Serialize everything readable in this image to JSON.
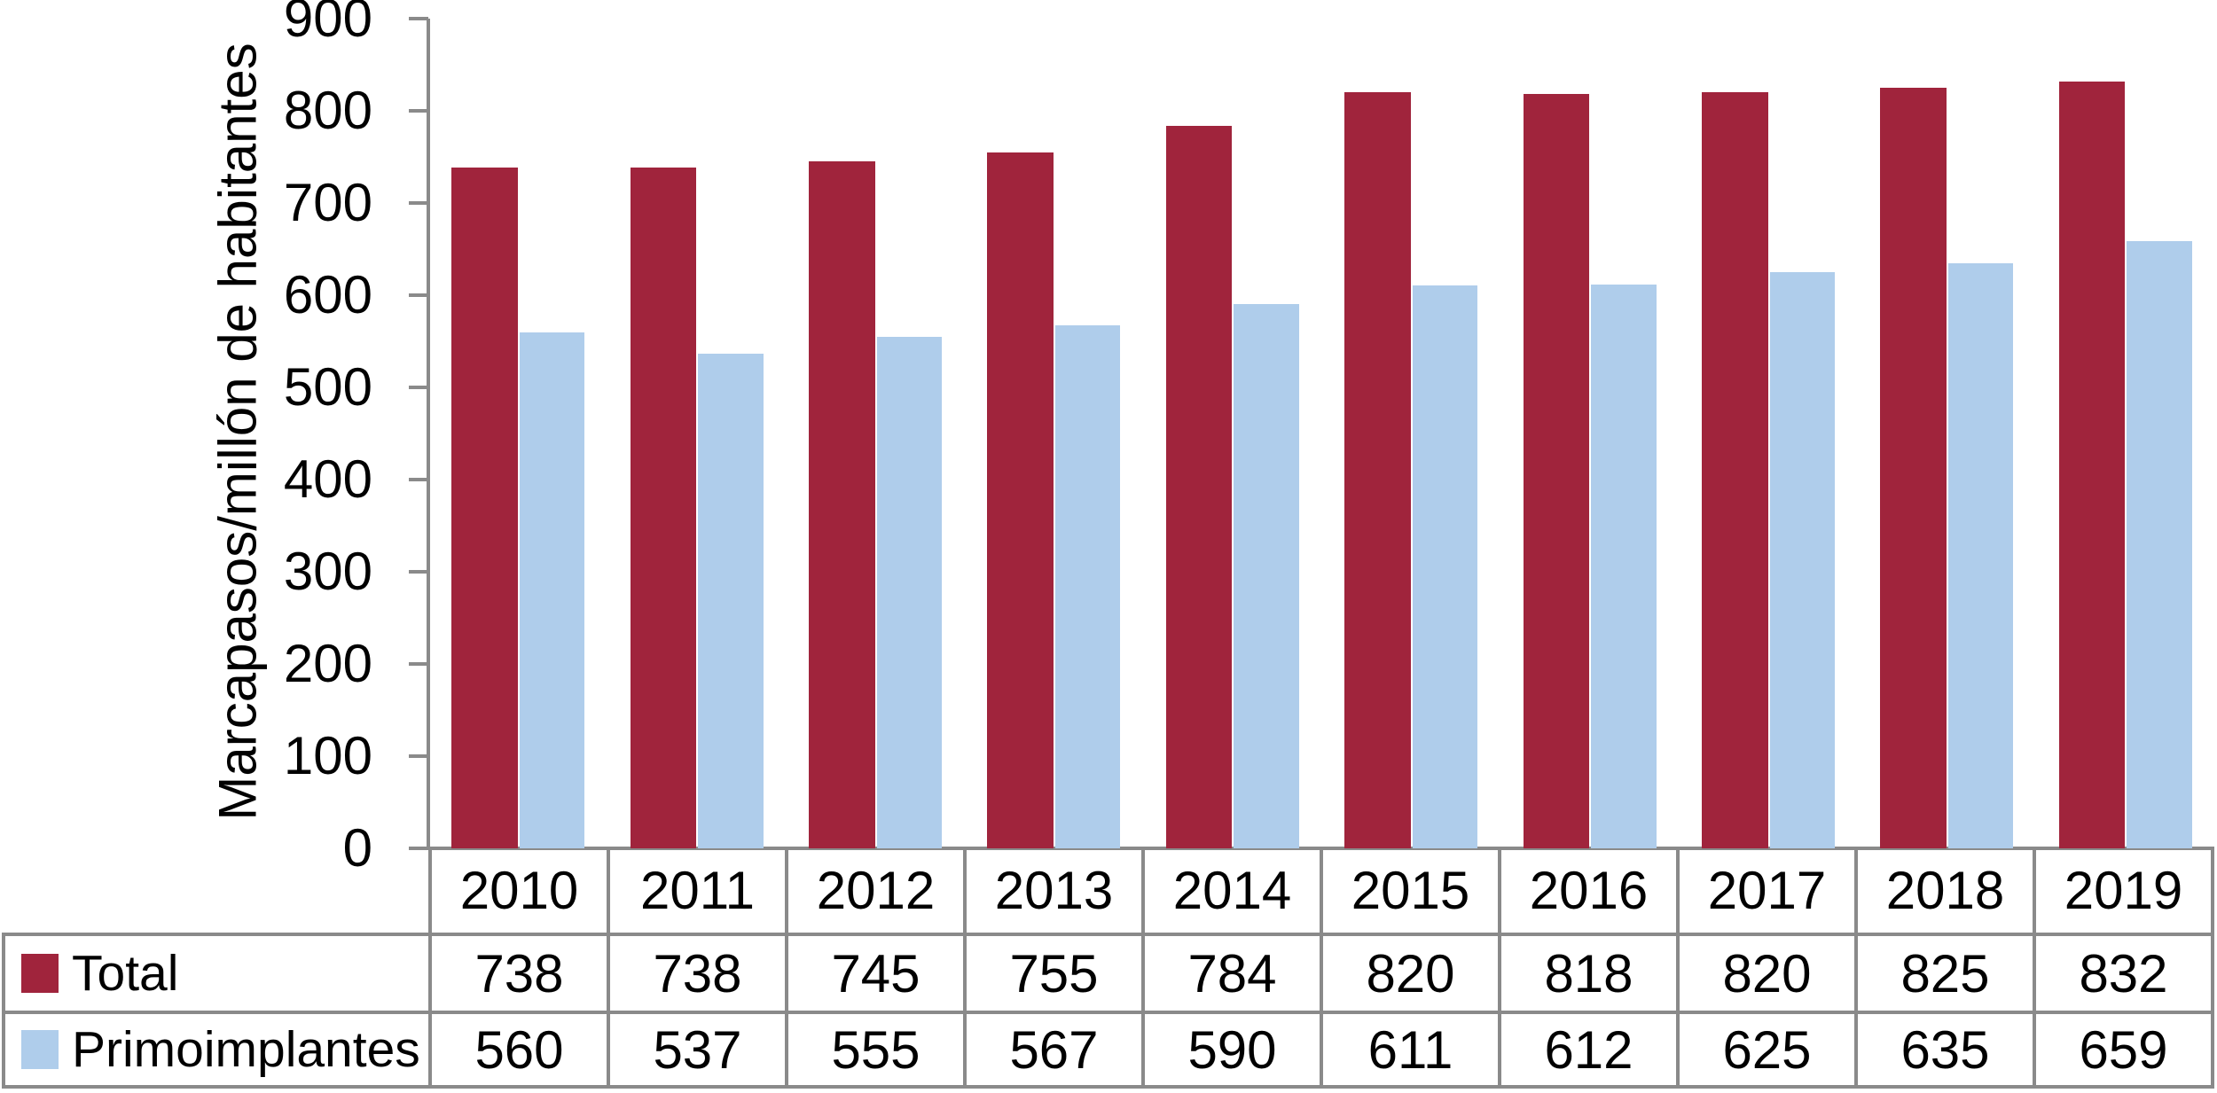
{
  "chart_data": {
    "type": "bar",
    "title": "",
    "xlabel": "",
    "ylabel": "Marcapasos/millón de habitantes",
    "categories": [
      "2010",
      "2011",
      "2012",
      "2013",
      "2014",
      "2015",
      "2016",
      "2017",
      "2018",
      "2019"
    ],
    "series": [
      {
        "name": "Total",
        "color": "#A0243C",
        "values": [
          738,
          738,
          745,
          755,
          784,
          820,
          818,
          820,
          825,
          832
        ]
      },
      {
        "name": "Primoimplantes",
        "color": "#AFCDEB",
        "values": [
          560,
          537,
          555,
          567,
          590,
          611,
          612,
          625,
          635,
          659
        ]
      }
    ],
    "ylim": [
      0,
      900
    ],
    "yticks": [
      0,
      100,
      200,
      300,
      400,
      500,
      600,
      700,
      800,
      900
    ],
    "grid": false,
    "legend_position": "data-table-left-column",
    "data_table_shown": true
  },
  "colors": {
    "axis": "#8A8A8A",
    "table_border": "#8A8A8A",
    "text": "#000000",
    "background": "#FFFFFF",
    "series_total": "#A0243C",
    "series_primoimplantes": "#AFCDEB"
  }
}
